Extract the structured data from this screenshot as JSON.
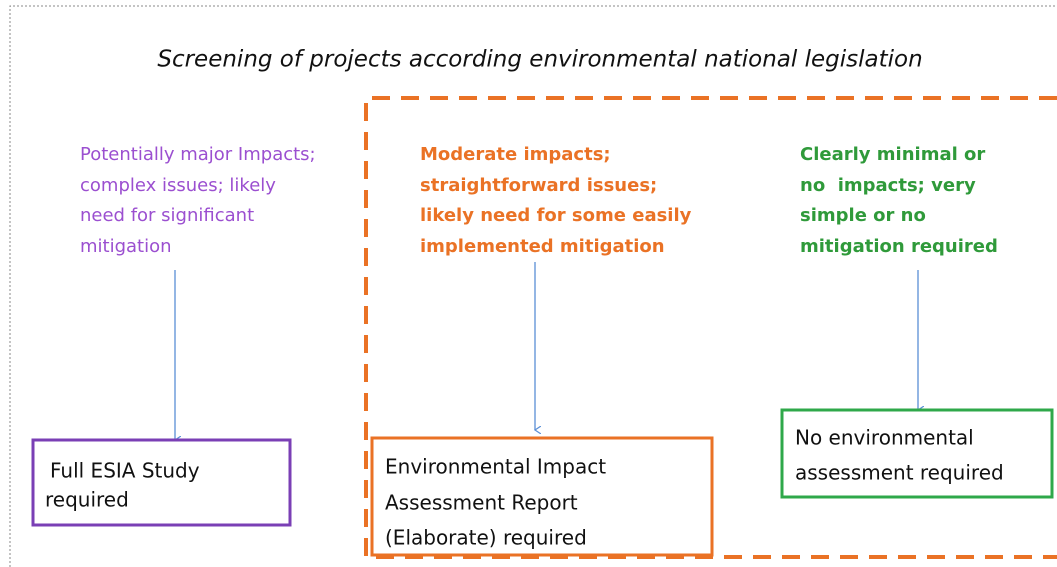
{
  "title": "Screening of projects according environmental national legislation",
  "columns": [
    {
      "description": [
        "Potentially major Impacts;",
        "complex issues; likely",
        "need for significant",
        "mitigation"
      ],
      "outcome": [
        "Full ESIA Study",
        "required"
      ]
    },
    {
      "description": [
        "Moderate impacts;",
        "straightforward issues;",
        "likely need for some easily",
        "implemented mitigation"
      ],
      "outcome": [
        "Environmental Impact",
        "Assessment Report",
        "(Elaborate) required"
      ]
    },
    {
      "description": [
        "Clearly minimal or",
        "no  impacts; very",
        "simple or no",
        "mitigation required"
      ],
      "outcome": [
        "No environmental",
        "assessment required"
      ]
    }
  ]
}
